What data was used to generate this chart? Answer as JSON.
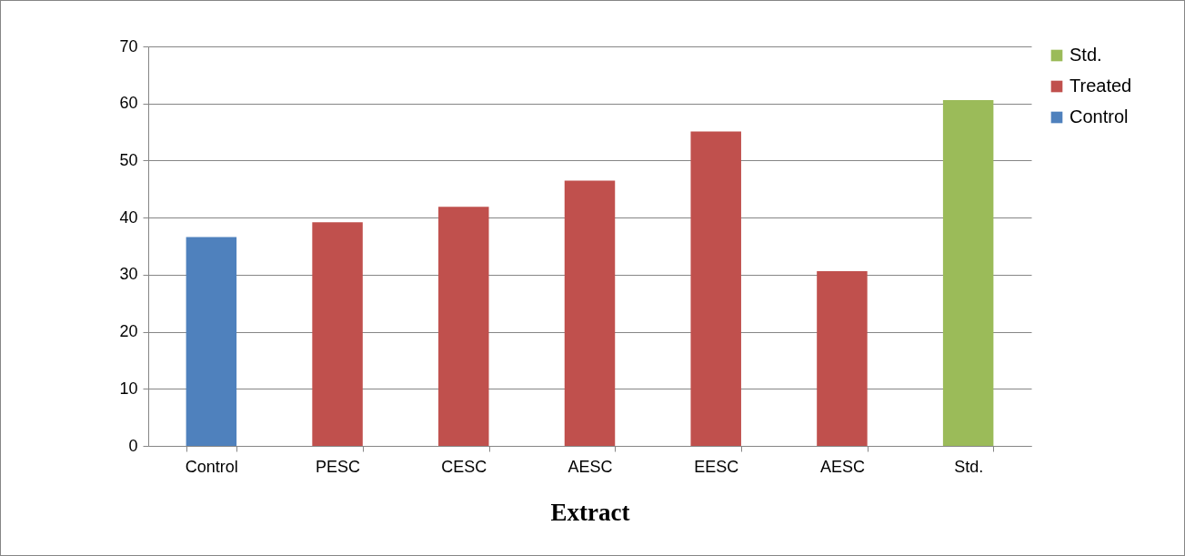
{
  "chart_data": {
    "type": "bar",
    "xlabel": "Extract",
    "categories": [
      "Control",
      "PESC",
      "CESC",
      "AESC",
      "EESC",
      "AESC",
      "Std."
    ],
    "series": [
      {
        "name": "Control",
        "color": "#4f81bd",
        "values": [
          36.6,
          null,
          null,
          null,
          null,
          null,
          null
        ]
      },
      {
        "name": "Treated",
        "color": "#c0504d",
        "values": [
          null,
          39.2,
          41.9,
          46.5,
          55.1,
          30.6,
          null
        ]
      },
      {
        "name": "Std.",
        "color": "#9bbb59",
        "values": [
          null,
          null,
          null,
          null,
          null,
          null,
          60.6
        ]
      }
    ],
    "ylim": [
      0,
      70
    ],
    "yticks": [
      0,
      10,
      20,
      30,
      40,
      50,
      60,
      70
    ],
    "grid": "y",
    "legend": "right"
  }
}
